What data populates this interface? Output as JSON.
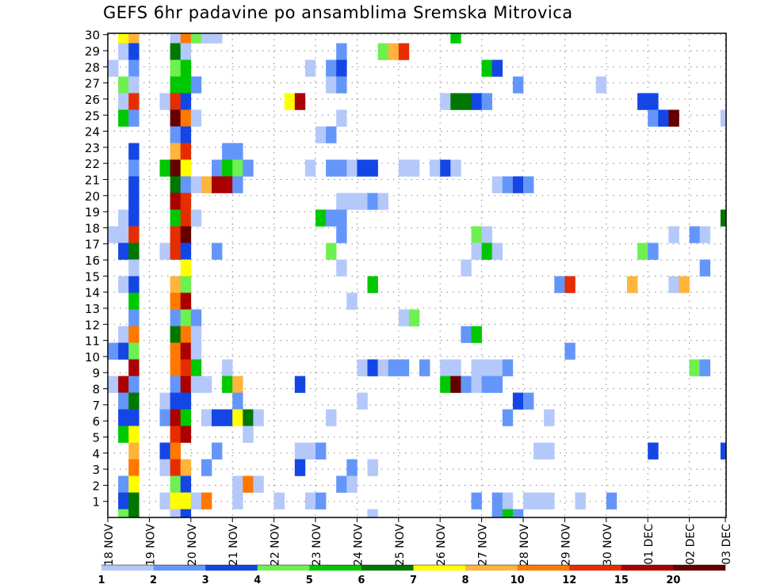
{
  "chart_data": {
    "type": "heatmap",
    "title": "GEFS 6hr padavine po ansamblima Sremska Mitrovica",
    "xlabel": "",
    "ylabel": "",
    "x_step_hours": 6,
    "x_tick_labels": [
      "18 NOV",
      "19 NOV",
      "20 NOV",
      "21 NOV",
      "22 NOV",
      "23 NOV",
      "24 NOV",
      "25 NOV",
      "26 NOV",
      "27 NOV",
      "28 NOV",
      "29 NOV",
      "30 NOV",
      "01 DEC",
      "02 DEC",
      "03 DEC"
    ],
    "y_tick_labels": [
      "1",
      "2",
      "3",
      "4",
      "5",
      "6",
      "7",
      "8",
      "9",
      "10",
      "11",
      "12",
      "13",
      "14",
      "15",
      "16",
      "17",
      "18",
      "19",
      "20",
      "21",
      "22",
      "23",
      "24",
      "25",
      "26",
      "27",
      "28",
      "29",
      "30"
    ],
    "members": 30,
    "timesteps": 60,
    "grid": true,
    "legend_placement": "bottom",
    "legend_labels": [
      "1",
      "2",
      "3",
      "4",
      "5",
      "6",
      "7",
      "8",
      "10",
      "12",
      "15",
      "20"
    ],
    "level_colors": [
      "#b4c8fa",
      "#6496fa",
      "#1446e6",
      "#6ef050",
      "#00c800",
      "#007800",
      "#ffff00",
      "#ffb43c",
      "#ff7800",
      "#e62d00",
      "#aa0000",
      "#640000"
    ],
    "cells_format": "[timestep_index, member_index, level_index]",
    "cells": [
      [
        1,
        29,
        6
      ],
      [
        2,
        29,
        7
      ],
      [
        6,
        29,
        0
      ],
      [
        7,
        29,
        8
      ],
      [
        8,
        29,
        3
      ],
      [
        9,
        29,
        0
      ],
      [
        10,
        29,
        0
      ],
      [
        33,
        29,
        4
      ],
      [
        1,
        28,
        0
      ],
      [
        2,
        28,
        2
      ],
      [
        6,
        28,
        5
      ],
      [
        7,
        28,
        0
      ],
      [
        22,
        28,
        1
      ],
      [
        26,
        28,
        3
      ],
      [
        27,
        28,
        7
      ],
      [
        28,
        28,
        9
      ],
      [
        0,
        27,
        0
      ],
      [
        2,
        27,
        1
      ],
      [
        6,
        27,
        3
      ],
      [
        7,
        27,
        4
      ],
      [
        19,
        27,
        0
      ],
      [
        21,
        27,
        1
      ],
      [
        22,
        27,
        2
      ],
      [
        36,
        27,
        4
      ],
      [
        37,
        27,
        2
      ],
      [
        1,
        26,
        3
      ],
      [
        2,
        26,
        0
      ],
      [
        6,
        26,
        4
      ],
      [
        7,
        26,
        4
      ],
      [
        8,
        26,
        1
      ],
      [
        21,
        26,
        0
      ],
      [
        22,
        26,
        1
      ],
      [
        39,
        26,
        1
      ],
      [
        47,
        26,
        0
      ],
      [
        1,
        25,
        0
      ],
      [
        2,
        25,
        9
      ],
      [
        5,
        25,
        0
      ],
      [
        6,
        25,
        9
      ],
      [
        7,
        25,
        2
      ],
      [
        17,
        25,
        6
      ],
      [
        18,
        25,
        10
      ],
      [
        32,
        25,
        0
      ],
      [
        33,
        25,
        5
      ],
      [
        34,
        25,
        5
      ],
      [
        35,
        25,
        2
      ],
      [
        36,
        25,
        1
      ],
      [
        51,
        25,
        2
      ],
      [
        52,
        25,
        2
      ],
      [
        1,
        24,
        4
      ],
      [
        2,
        24,
        1
      ],
      [
        6,
        24,
        11
      ],
      [
        7,
        24,
        8
      ],
      [
        8,
        24,
        0
      ],
      [
        22,
        24,
        0
      ],
      [
        52,
        24,
        1
      ],
      [
        53,
        24,
        2
      ],
      [
        54,
        24,
        11
      ],
      [
        59,
        24,
        0
      ],
      [
        6,
        23,
        1
      ],
      [
        7,
        23,
        2
      ],
      [
        20,
        23,
        0
      ],
      [
        21,
        23,
        1
      ],
      [
        2,
        22,
        2
      ],
      [
        6,
        22,
        7
      ],
      [
        7,
        22,
        9
      ],
      [
        11,
        22,
        1
      ],
      [
        12,
        22,
        1
      ],
      [
        2,
        21,
        1
      ],
      [
        5,
        21,
        4
      ],
      [
        6,
        21,
        11
      ],
      [
        7,
        21,
        6
      ],
      [
        10,
        21,
        1
      ],
      [
        11,
        21,
        4
      ],
      [
        12,
        21,
        3
      ],
      [
        13,
        21,
        1
      ],
      [
        19,
        21,
        0
      ],
      [
        21,
        21,
        1
      ],
      [
        22,
        21,
        1
      ],
      [
        23,
        21,
        0
      ],
      [
        24,
        21,
        2
      ],
      [
        25,
        21,
        2
      ],
      [
        28,
        21,
        0
      ],
      [
        29,
        21,
        0
      ],
      [
        31,
        21,
        0
      ],
      [
        32,
        21,
        2
      ],
      [
        33,
        21,
        0
      ],
      [
        2,
        20,
        2
      ],
      [
        6,
        20,
        5
      ],
      [
        7,
        20,
        1
      ],
      [
        8,
        20,
        0
      ],
      [
        9,
        20,
        7
      ],
      [
        10,
        20,
        10
      ],
      [
        11,
        20,
        10
      ],
      [
        12,
        20,
        1
      ],
      [
        37,
        20,
        0
      ],
      [
        38,
        20,
        1
      ],
      [
        39,
        20,
        2
      ],
      [
        40,
        20,
        1
      ],
      [
        2,
        19,
        2
      ],
      [
        6,
        19,
        10
      ],
      [
        7,
        19,
        9
      ],
      [
        22,
        19,
        0
      ],
      [
        23,
        19,
        0
      ],
      [
        24,
        19,
        0
      ],
      [
        25,
        19,
        1
      ],
      [
        26,
        19,
        0
      ],
      [
        1,
        18,
        0
      ],
      [
        2,
        18,
        2
      ],
      [
        6,
        18,
        4
      ],
      [
        7,
        18,
        9
      ],
      [
        8,
        18,
        0
      ],
      [
        20,
        18,
        4
      ],
      [
        21,
        18,
        1
      ],
      [
        22,
        18,
        1
      ],
      [
        59,
        18,
        5
      ],
      [
        0,
        17,
        0
      ],
      [
        1,
        17,
        0
      ],
      [
        2,
        17,
        9
      ],
      [
        6,
        17,
        9
      ],
      [
        7,
        17,
        11
      ],
      [
        22,
        17,
        1
      ],
      [
        35,
        17,
        3
      ],
      [
        36,
        17,
        0
      ],
      [
        54,
        17,
        0
      ],
      [
        56,
        17,
        1
      ],
      [
        57,
        17,
        0
      ],
      [
        1,
        16,
        2
      ],
      [
        2,
        16,
        5
      ],
      [
        5,
        16,
        0
      ],
      [
        6,
        16,
        9
      ],
      [
        7,
        16,
        2
      ],
      [
        10,
        16,
        1
      ],
      [
        21,
        16,
        3
      ],
      [
        35,
        16,
        0
      ],
      [
        36,
        16,
        4
      ],
      [
        37,
        16,
        0
      ],
      [
        51,
        16,
        3
      ],
      [
        52,
        16,
        1
      ],
      [
        2,
        15,
        0
      ],
      [
        7,
        15,
        6
      ],
      [
        22,
        15,
        0
      ],
      [
        34,
        15,
        0
      ],
      [
        57,
        15,
        1
      ],
      [
        1,
        14,
        0
      ],
      [
        2,
        14,
        2
      ],
      [
        6,
        14,
        7
      ],
      [
        7,
        14,
        3
      ],
      [
        25,
        14,
        4
      ],
      [
        43,
        14,
        1
      ],
      [
        44,
        14,
        9
      ],
      [
        50,
        14,
        7
      ],
      [
        54,
        14,
        0
      ],
      [
        55,
        14,
        7
      ],
      [
        2,
        13,
        4
      ],
      [
        6,
        13,
        8
      ],
      [
        7,
        13,
        10
      ],
      [
        23,
        13,
        0
      ],
      [
        2,
        12,
        1
      ],
      [
        6,
        12,
        1
      ],
      [
        7,
        12,
        3
      ],
      [
        8,
        12,
        1
      ],
      [
        28,
        12,
        0
      ],
      [
        29,
        12,
        3
      ],
      [
        1,
        11,
        0
      ],
      [
        2,
        11,
        8
      ],
      [
        6,
        11,
        5
      ],
      [
        7,
        11,
        8
      ],
      [
        8,
        11,
        0
      ],
      [
        34,
        11,
        1
      ],
      [
        35,
        11,
        4
      ],
      [
        0,
        10,
        1
      ],
      [
        1,
        10,
        2
      ],
      [
        2,
        10,
        3
      ],
      [
        6,
        10,
        8
      ],
      [
        7,
        10,
        10
      ],
      [
        8,
        10,
        0
      ],
      [
        44,
        10,
        1
      ],
      [
        2,
        9,
        10
      ],
      [
        6,
        9,
        8
      ],
      [
        7,
        9,
        9
      ],
      [
        8,
        9,
        4
      ],
      [
        11,
        9,
        0
      ],
      [
        24,
        9,
        0
      ],
      [
        25,
        9,
        2
      ],
      [
        26,
        9,
        0
      ],
      [
        27,
        9,
        1
      ],
      [
        28,
        9,
        1
      ],
      [
        30,
        9,
        1
      ],
      [
        32,
        9,
        0
      ],
      [
        33,
        9,
        0
      ],
      [
        35,
        9,
        0
      ],
      [
        36,
        9,
        0
      ],
      [
        37,
        9,
        0
      ],
      [
        38,
        9,
        1
      ],
      [
        56,
        9,
        3
      ],
      [
        57,
        9,
        1
      ],
      [
        0,
        8,
        0
      ],
      [
        1,
        8,
        10
      ],
      [
        2,
        8,
        1
      ],
      [
        6,
        8,
        1
      ],
      [
        7,
        8,
        10
      ],
      [
        8,
        8,
        0
      ],
      [
        9,
        8,
        0
      ],
      [
        11,
        8,
        4
      ],
      [
        12,
        8,
        7
      ],
      [
        18,
        8,
        2
      ],
      [
        32,
        8,
        4
      ],
      [
        33,
        8,
        11
      ],
      [
        34,
        8,
        1
      ],
      [
        35,
        8,
        0
      ],
      [
        36,
        8,
        1
      ],
      [
        37,
        8,
        1
      ],
      [
        1,
        7,
        1
      ],
      [
        2,
        7,
        5
      ],
      [
        5,
        7,
        0
      ],
      [
        6,
        7,
        2
      ],
      [
        7,
        7,
        2
      ],
      [
        12,
        7,
        1
      ],
      [
        24,
        7,
        0
      ],
      [
        39,
        7,
        2
      ],
      [
        40,
        7,
        1
      ],
      [
        1,
        6,
        2
      ],
      [
        2,
        6,
        2
      ],
      [
        5,
        6,
        1
      ],
      [
        6,
        6,
        10
      ],
      [
        7,
        6,
        4
      ],
      [
        9,
        6,
        0
      ],
      [
        10,
        6,
        2
      ],
      [
        11,
        6,
        2
      ],
      [
        12,
        6,
        6
      ],
      [
        13,
        6,
        5
      ],
      [
        14,
        6,
        0
      ],
      [
        21,
        6,
        0
      ],
      [
        38,
        6,
        1
      ],
      [
        42,
        6,
        0
      ],
      [
        1,
        5,
        4
      ],
      [
        2,
        5,
        6
      ],
      [
        6,
        5,
        9
      ],
      [
        7,
        5,
        10
      ],
      [
        13,
        5,
        0
      ],
      [
        2,
        4,
        7
      ],
      [
        5,
        4,
        2
      ],
      [
        6,
        4,
        8
      ],
      [
        10,
        4,
        1
      ],
      [
        18,
        4,
        0
      ],
      [
        19,
        4,
        0
      ],
      [
        20,
        4,
        1
      ],
      [
        41,
        4,
        0
      ],
      [
        42,
        4,
        0
      ],
      [
        52,
        4,
        2
      ],
      [
        59,
        4,
        2
      ],
      [
        2,
        3,
        8
      ],
      [
        5,
        3,
        0
      ],
      [
        6,
        3,
        9
      ],
      [
        7,
        3,
        7
      ],
      [
        9,
        3,
        1
      ],
      [
        18,
        3,
        2
      ],
      [
        23,
        3,
        1
      ],
      [
        25,
        3,
        0
      ],
      [
        1,
        2,
        1
      ],
      [
        2,
        2,
        6
      ],
      [
        6,
        2,
        3
      ],
      [
        7,
        2,
        2
      ],
      [
        12,
        2,
        0
      ],
      [
        13,
        2,
        8
      ],
      [
        14,
        2,
        0
      ],
      [
        22,
        2,
        1
      ],
      [
        23,
        2,
        0
      ],
      [
        1,
        1,
        2
      ],
      [
        2,
        1,
        5
      ],
      [
        5,
        1,
        0
      ],
      [
        6,
        1,
        6
      ],
      [
        7,
        1,
        6
      ],
      [
        8,
        1,
        0
      ],
      [
        9,
        1,
        8
      ],
      [
        12,
        1,
        0
      ],
      [
        16,
        1,
        0
      ],
      [
        19,
        1,
        0
      ],
      [
        20,
        1,
        1
      ],
      [
        35,
        1,
        1
      ],
      [
        37,
        1,
        1
      ],
      [
        38,
        1,
        0
      ],
      [
        40,
        1,
        0
      ],
      [
        41,
        1,
        0
      ],
      [
        42,
        1,
        0
      ],
      [
        45,
        1,
        0
      ],
      [
        48,
        1,
        1
      ],
      [
        1,
        0,
        3
      ],
      [
        2,
        0,
        5
      ],
      [
        6,
        0,
        0
      ],
      [
        7,
        0,
        2
      ],
      [
        25,
        0,
        0
      ],
      [
        37,
        0,
        1
      ],
      [
        38,
        0,
        4
      ],
      [
        39,
        0,
        1
      ]
    ]
  }
}
